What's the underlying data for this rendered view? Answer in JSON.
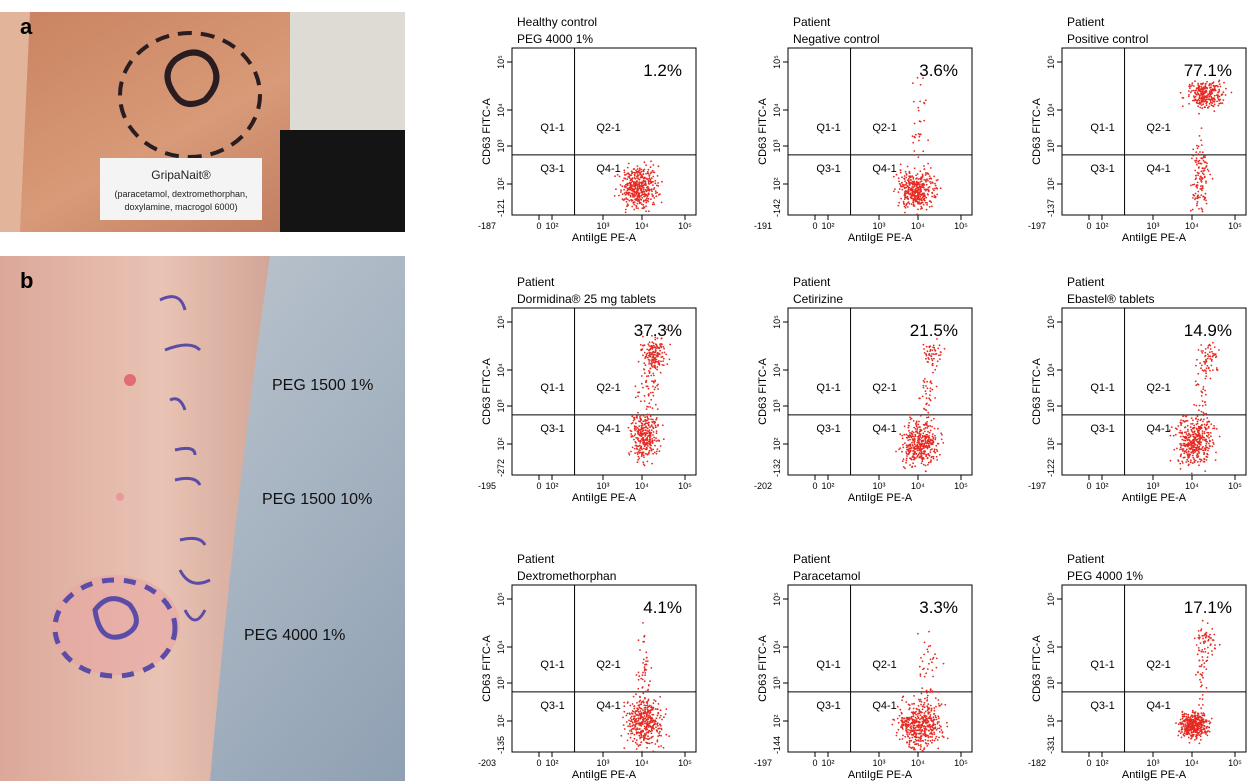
{
  "panel_a": {
    "label": "a",
    "card": {
      "title": "GripaNait®",
      "lines": [
        "(paracetamol, dextromethorphan,",
        "doxylamine, macrogol 6000)"
      ]
    }
  },
  "panel_b": {
    "label": "b",
    "annotations": [
      "PEG 1500 1%",
      "PEG 1500 10%",
      "PEG 4000 1%"
    ]
  },
  "plots": [
    {
      "title": [
        "Healthy control",
        "PEG 4000 1%"
      ],
      "percent": "1.2%",
      "xticks": [
        "-187",
        "0",
        "10²",
        "10³",
        "10⁴",
        "10⁵"
      ],
      "yticks": [
        "-121",
        "10²",
        "10³",
        "10⁴",
        "10⁵"
      ]
    },
    {
      "title": [
        "Patient",
        "Negative control"
      ],
      "percent": "3.6%",
      "xticks": [
        "-191",
        "0",
        "10²",
        "10³",
        "10⁴",
        "10⁵"
      ],
      "yticks": [
        "-142",
        "10²",
        "10³",
        "10⁴",
        "10⁵"
      ]
    },
    {
      "title": [
        "Patient",
        "Positive control"
      ],
      "percent": "77.1%",
      "xticks": [
        "-197",
        "0",
        "10²",
        "10³",
        "10⁴",
        "10⁵"
      ],
      "yticks": [
        "-137",
        "10²",
        "10³",
        "10⁴",
        "10⁵"
      ]
    },
    {
      "title": [
        "Patient",
        "Dormidina® 25 mg tablets"
      ],
      "percent": "37.3%",
      "xticks": [
        "-195",
        "0",
        "10²",
        "10³",
        "10⁴",
        "10⁵"
      ],
      "yticks": [
        "-272",
        "10²",
        "10³",
        "10⁴",
        "10⁵"
      ]
    },
    {
      "title": [
        "Patient",
        "Cetirizine"
      ],
      "percent": "21.5%",
      "xticks": [
        "-202",
        "0",
        "10²",
        "10³",
        "10⁴",
        "10⁵"
      ],
      "yticks": [
        "-132",
        "10²",
        "10³",
        "10⁴",
        "10⁵"
      ]
    },
    {
      "title": [
        "Patient",
        "Ebastel® tablets"
      ],
      "percent": "14.9%",
      "xticks": [
        "-197",
        "0",
        "10²",
        "10³",
        "10⁴",
        "10⁵"
      ],
      "yticks": [
        "-122",
        "10²",
        "10³",
        "10⁴",
        "10⁵"
      ]
    },
    {
      "title": [
        "Patient",
        "Dextromethorphan"
      ],
      "percent": "4.1%",
      "xticks": [
        "-203",
        "0",
        "10²",
        "10³",
        "10⁴",
        "10⁵"
      ],
      "yticks": [
        "-135",
        "10²",
        "10³",
        "10⁴",
        "10⁵"
      ]
    },
    {
      "title": [
        "Patient",
        "Paracetamol"
      ],
      "percent": "3.3%",
      "xticks": [
        "-197",
        "0",
        "10²",
        "10³",
        "10⁴",
        "10⁵"
      ],
      "yticks": [
        "-144",
        "10²",
        "10³",
        "10⁴",
        "10⁵"
      ]
    },
    {
      "title": [
        "Patient",
        "PEG 4000 1%"
      ],
      "percent": "17.1%",
      "xticks": [
        "-182",
        "0",
        "10²",
        "10³",
        "10⁴",
        "10⁵"
      ],
      "yticks": [
        "-331",
        "10²",
        "10³",
        "10⁴",
        "10⁵"
      ]
    }
  ],
  "quadrants": [
    "Q1-1",
    "Q2-1",
    "Q3-1",
    "Q4-1"
  ],
  "x_label": "AntiIgE PE-A",
  "y_label": "CD63 FITC-A"
}
